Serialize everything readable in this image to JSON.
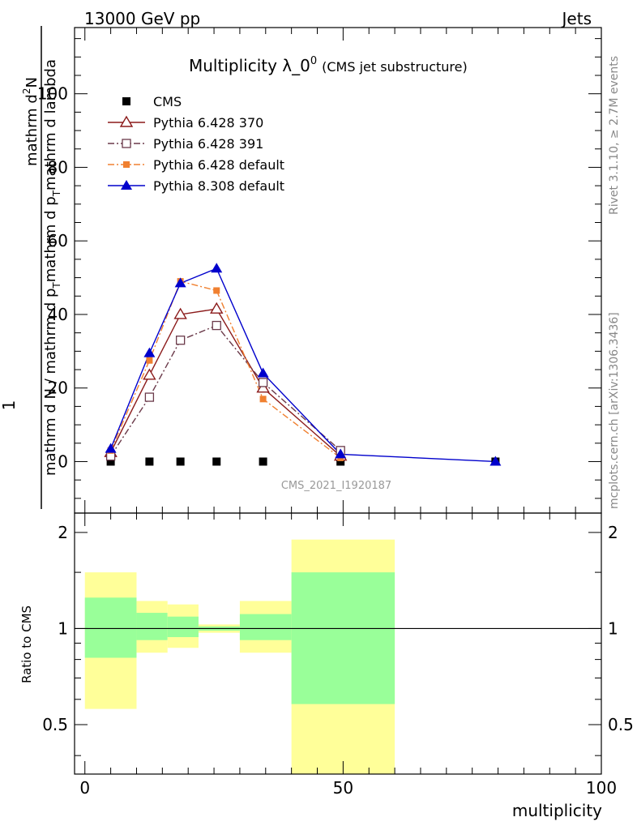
{
  "header": {
    "left": "13000 GeV pp",
    "right": "Jets"
  },
  "side_labels": {
    "rivet": "Rivet 3.1.10, ≥ 2.7M events",
    "mcplots": "mcplots.cern.ch [arXiv:1306.3436]"
  },
  "chart_data": {
    "type": "line",
    "title_main": "Multiplicity λ_0",
    "title_sup": "0",
    "title_small": "(CMS jet substructure)",
    "watermark": "CMS_2021_I1920187",
    "ylabel_upper": {
      "numerator_prefix": "1",
      "numerator": "mathrm d",
      "numerator_sup": "2",
      "numerator_tail": "N",
      "denominator": "mathrm d N / mathrm d p",
      "den_sub1": "T",
      "denominator_mid": "mathrm d p",
      "den_sub2": "T",
      "denominator_tail": "mathrm d lambda"
    },
    "ylabel_lower": "Ratio to CMS",
    "xlabel": "multiplicity",
    "xlim": [
      -2,
      100
    ],
    "upper_ylim": [
      -14,
      118
    ],
    "upper_yticks": [
      0,
      20,
      40,
      60,
      80,
      100
    ],
    "lower_yticks": [
      0.5,
      1,
      2
    ],
    "lower_ylim_note": "log scale",
    "xticks": [
      0,
      50,
      100
    ],
    "legend_placement": "top-left",
    "series": [
      {
        "name": "CMS",
        "color": "#000000",
        "marker": "square-filled",
        "line": "none",
        "x": [
          5,
          12.5,
          18.5,
          25.5,
          34.5,
          49.5,
          79.5
        ],
        "y": [
          0,
          0,
          0,
          0,
          0,
          0,
          0
        ]
      },
      {
        "name": "Pythia 6.428 370",
        "color": "#8b1a1a",
        "marker": "triangle-open",
        "line": "solid",
        "x": [
          5,
          12.5,
          18.5,
          25.5,
          34.5,
          49.5
        ],
        "y": [
          2.5,
          23.5,
          40,
          41.5,
          20,
          1.5
        ]
      },
      {
        "name": "Pythia 6.428 391",
        "color": "#6b3a4a",
        "marker": "square-open",
        "line": "dashdot",
        "x": [
          5,
          12.5,
          18.5,
          25.5,
          34.5,
          49.5
        ],
        "y": [
          1.5,
          17.5,
          33,
          37,
          21.5,
          3
        ]
      },
      {
        "name": "Pythia 6.428 default",
        "color": "#f08030",
        "marker": "square-filled-small",
        "line": "dashdot",
        "x": [
          5,
          12.5,
          18.5,
          25.5,
          34.5,
          49.5
        ],
        "y": [
          3,
          27.5,
          49,
          46.5,
          17,
          1
        ]
      },
      {
        "name": "Pythia 8.308 default",
        "color": "#0000cc",
        "marker": "triangle-filled",
        "line": "solid",
        "x": [
          5,
          12.5,
          18.5,
          25.5,
          34.5,
          49.5,
          79.5
        ],
        "y": [
          3.5,
          29.5,
          48.5,
          52.5,
          24,
          2,
          0
        ]
      }
    ],
    "ratio_bands": [
      {
        "x0": 0,
        "x1": 10,
        "yellow": [
          0.56,
          1.5
        ],
        "green": [
          0.81,
          1.25
        ]
      },
      {
        "x0": 10,
        "x1": 16,
        "yellow": [
          0.84,
          1.22
        ],
        "green": [
          0.92,
          1.12
        ]
      },
      {
        "x0": 16,
        "x1": 22,
        "yellow": [
          0.87,
          1.19
        ],
        "green": [
          0.94,
          1.09
        ]
      },
      {
        "x0": 22,
        "x1": 30,
        "yellow": [
          0.97,
          1.03
        ],
        "green": [
          0.985,
          1.015
        ]
      },
      {
        "x0": 30,
        "x1": 40,
        "yellow": [
          0.84,
          1.22
        ],
        "green": [
          0.92,
          1.11
        ]
      },
      {
        "x0": 40,
        "x1": 60,
        "yellow": [
          0.3,
          1.9
        ],
        "green": [
          0.58,
          1.5
        ]
      }
    ],
    "band_colors": {
      "yellow": "#ffff99",
      "green": "#99ff99"
    }
  }
}
